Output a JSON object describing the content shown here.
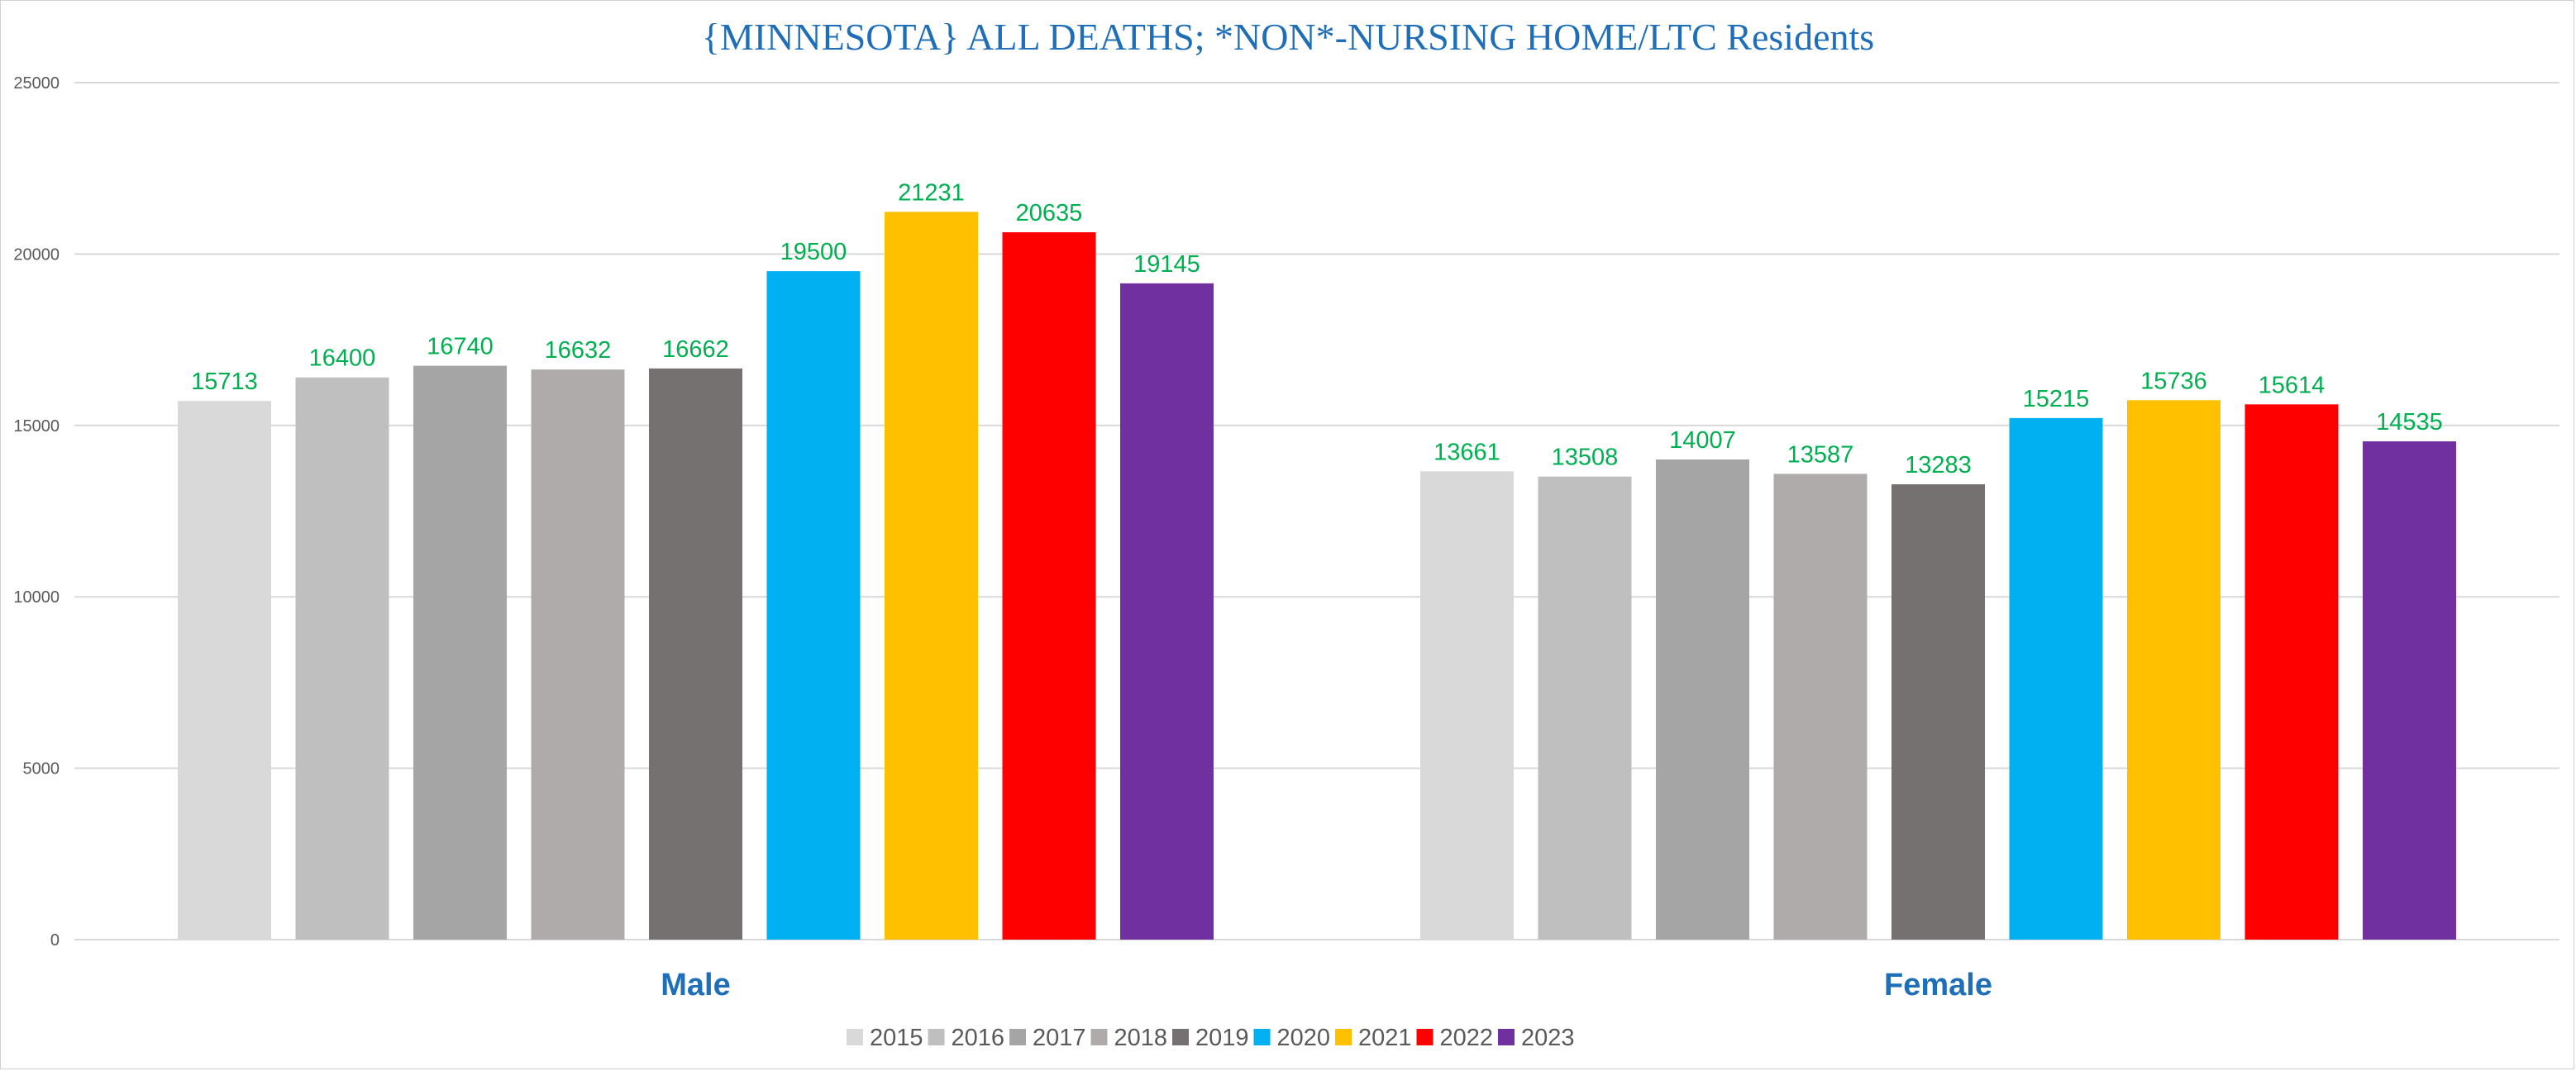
{
  "chart_data": {
    "type": "bar",
    "title": "{MINNESOTA}  ALL DEATHS; *NON*-NURSING HOME/LTC Residents",
    "categories": [
      "Male",
      "Female"
    ],
    "ylim": [
      0,
      25000
    ],
    "yticks": [
      0,
      5000,
      10000,
      15000,
      20000,
      25000
    ],
    "xlabel": "",
    "ylabel": "",
    "grid": true,
    "legend_position": "bottom",
    "series": [
      {
        "name": "2015",
        "color": "#d9d9d9",
        "values": [
          15713,
          13661
        ]
      },
      {
        "name": "2016",
        "color": "#bfbfbf",
        "values": [
          16400,
          13508
        ]
      },
      {
        "name": "2017",
        "color": "#a5a5a5",
        "values": [
          16740,
          14007
        ]
      },
      {
        "name": "2018",
        "color": "#afabab",
        "values": [
          16632,
          13587
        ]
      },
      {
        "name": "2019",
        "color": "#767171",
        "values": [
          16662,
          13283
        ]
      },
      {
        "name": "2020",
        "color": "#00b0f0",
        "values": [
          19500,
          15215
        ]
      },
      {
        "name": "2021",
        "color": "#ffc000",
        "values": [
          21231,
          15736
        ]
      },
      {
        "name": "2022",
        "color": "#ff0000",
        "values": [
          20635,
          15614
        ]
      },
      {
        "name": "2023",
        "color": "#7030a0",
        "values": [
          19145,
          14535
        ]
      }
    ]
  }
}
